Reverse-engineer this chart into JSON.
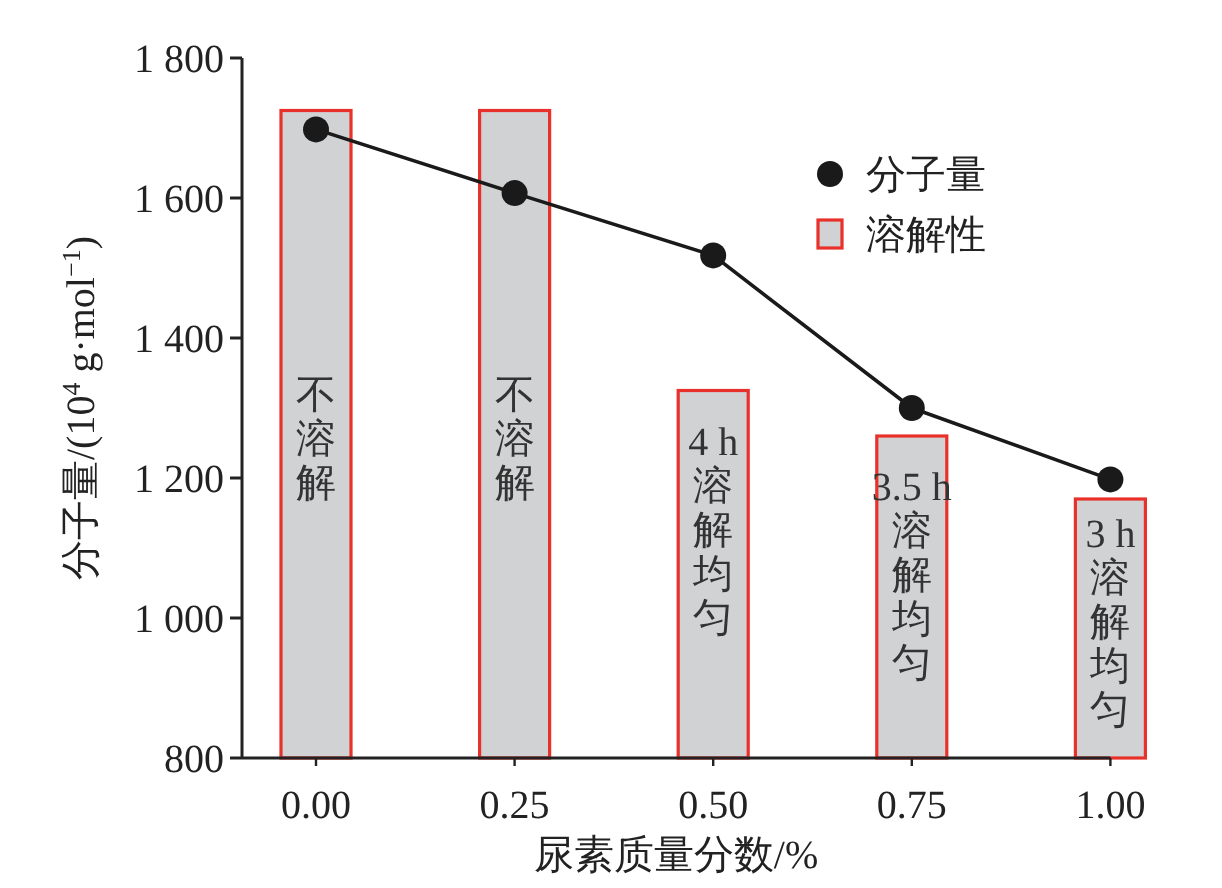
{
  "chart_data": {
    "type": "bar",
    "xlabel": "尿素质量分数/%",
    "ylabel": "分子量/(10$^{4}$ g·mol$^{−1}$)",
    "categories": [
      "0.00",
      "0.25",
      "0.50",
      "0.75",
      "1.00"
    ],
    "series": [
      {
        "name": "溶解性",
        "color": "#d1d2d4",
        "values": [
          1725,
          1725,
          1325,
          1260,
          1170
        ]
      },
      {
        "name": "分子量",
        "type": "line",
        "color": "#1a1a1a",
        "marker": "circle",
        "values": [
          1698,
          1607,
          1518,
          1300,
          1198
        ]
      }
    ],
    "ylim": [
      800,
      1800
    ],
    "yticks": [
      {
        "value": 800,
        "label": "800"
      },
      {
        "value": 1000,
        "label": "1 000"
      },
      {
        "value": 1200,
        "label": "1 200"
      },
      {
        "value": 1400,
        "label": "1 400"
      },
      {
        "value": 1600,
        "label": "1 600"
      },
      {
        "value": 1800,
        "label": "1 800"
      }
    ],
    "annotations": [
      "不溶解",
      "不溶解",
      "4 h溶解均匀",
      "3.5 h溶解均匀",
      "3 h溶解均匀"
    ],
    "legend": "top right",
    "grid": false
  }
}
